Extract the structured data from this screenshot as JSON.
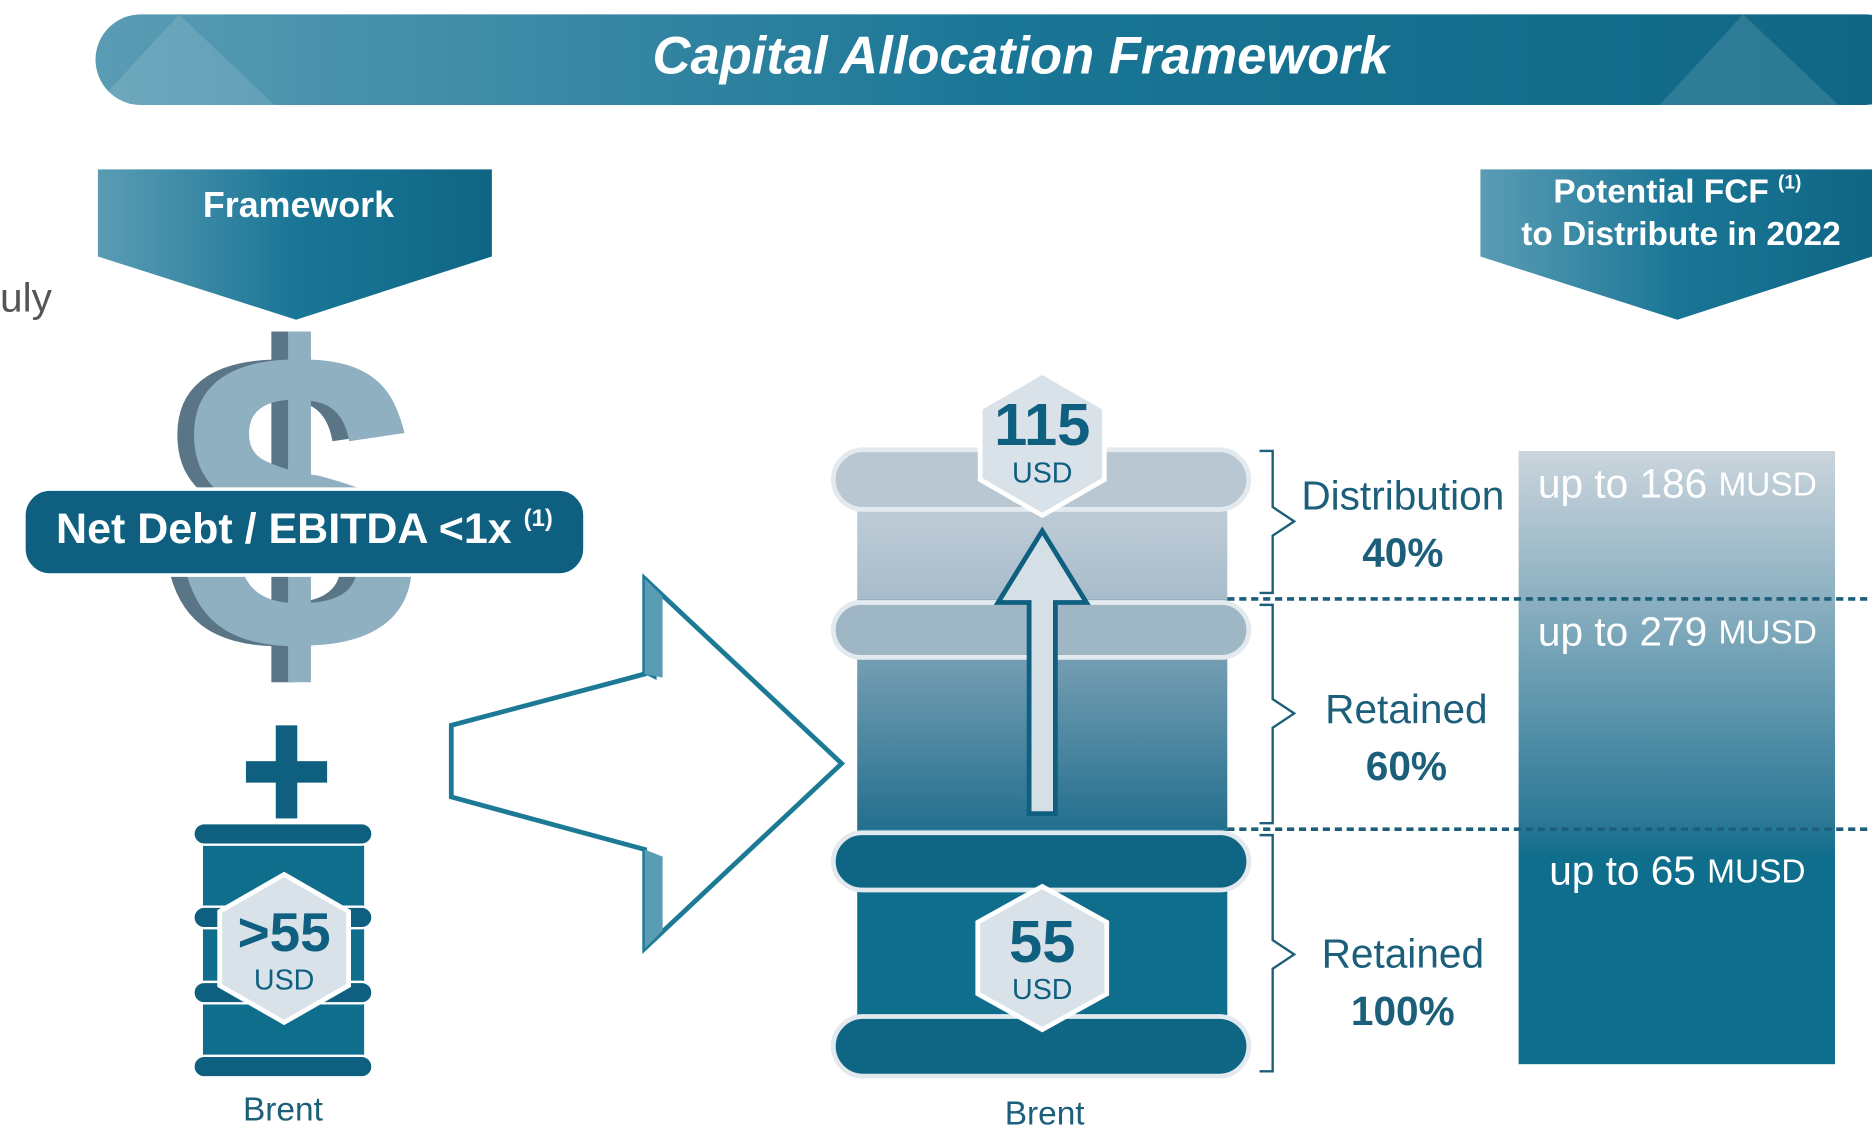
{
  "header": {
    "title": "Capital Allocation Framework"
  },
  "left_fragment": "uly",
  "framework": {
    "label": "Framework",
    "covenant": "Net Debt / EBITDA <1x",
    "covenant_note": "(1)",
    "barrel": {
      "price": ">55",
      "unit": "USD",
      "label": "Brent"
    }
  },
  "fcf_header": {
    "line1": "Potential FCF",
    "note": "(1)",
    "line2": "to Distribute in 2022"
  },
  "barrel": {
    "top": {
      "price": "115",
      "unit": "USD"
    },
    "bottom": {
      "price": "55",
      "unit": "USD"
    },
    "label": "Brent"
  },
  "tiers": [
    {
      "name": "Distribution",
      "share": "40%",
      "amount": "up to 186",
      "unit": "MUSD"
    },
    {
      "name": "Retained",
      "share": "60%",
      "amount": "up to 279",
      "unit": "MUSD"
    },
    {
      "name": "Retained",
      "share": "100%",
      "amount": "up to 65",
      "unit": "MUSD"
    }
  ]
}
